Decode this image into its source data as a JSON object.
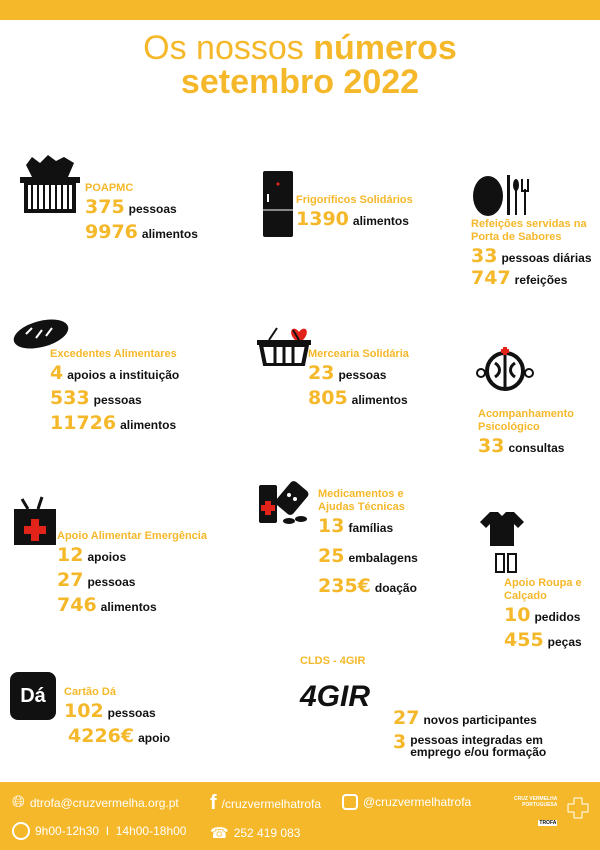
{
  "header": {
    "title_light": "Os nossos",
    "title_bold": "números",
    "subtitle": "setembro 2022"
  },
  "sections": [
    {
      "label": "POAPMC",
      "icon": "basket-icon",
      "stats": [
        {
          "value": "375",
          "unit": "pessoas"
        },
        {
          "value": "9976",
          "unit": "alimentos"
        }
      ]
    },
    {
      "label": "Frigoríficos Solidários",
      "icon": "fridge-icon",
      "stats": [
        {
          "value": "1390",
          "unit": "alimentos"
        }
      ]
    },
    {
      "label": "Refeições servidas na Porta de Sabores",
      "icon": "plate-cutlery-icon",
      "stats": [
        {
          "value": "33",
          "unit": "pessoas diárias"
        },
        {
          "value": "747",
          "unit": "refeições"
        }
      ]
    },
    {
      "label": "Excedentes Alimentares",
      "icon": "bread-icon",
      "stats": [
        {
          "value": "4",
          "unit": "apoios a instituição"
        },
        {
          "value": "533",
          "unit": "pessoas"
        },
        {
          "value": "11726",
          "unit": "alimentos"
        }
      ]
    },
    {
      "label": "Mercearia Solidária",
      "icon": "heart-basket-icon",
      "stats": [
        {
          "value": "23",
          "unit": "pessoas"
        },
        {
          "value": "805",
          "unit": "alimentos"
        }
      ]
    },
    {
      "label": "Acompanhamento Psicológico",
      "icon": "brain-icon",
      "stats": [
        {
          "value": "33",
          "unit": "consultas"
        }
      ]
    },
    {
      "label": "Apoio Alimentar Emergência",
      "icon": "grocery-bag-icon",
      "stats": [
        {
          "value": "12",
          "unit": "apoios"
        },
        {
          "value": "27",
          "unit": "pessoas"
        },
        {
          "value": "746",
          "unit": "alimentos"
        }
      ]
    },
    {
      "label": "Medicamentos e Ajudas Técnicas",
      "icon": "medicine-icon",
      "stats": [
        {
          "value": "13",
          "unit": "famílias"
        },
        {
          "value": "25",
          "unit": "embalagens"
        },
        {
          "value": "235€",
          "unit": "doação"
        }
      ]
    },
    {
      "label": "Apoio Roupa e Calçado",
      "icon": "shirt-shoes-icon",
      "stats": [
        {
          "value": "10",
          "unit": "pedidos"
        },
        {
          "value": "455",
          "unit": "peças"
        }
      ]
    },
    {
      "label": "Cartão Dá",
      "icon": "gift-card-icon",
      "logo_text": "Dá",
      "stats": [
        {
          "value": "102",
          "unit": "pessoas"
        },
        {
          "value": "4226€",
          "unit": "apoio"
        }
      ]
    },
    {
      "label": "CLDS - 4GIR",
      "icon": "4gir-logo",
      "logo_text": "4GIR",
      "stats": [
        {
          "value": "27",
          "unit": "novos participantes"
        },
        {
          "value": "3",
          "unit": "pessoas integradas em emprego e/ou formação"
        }
      ]
    }
  ],
  "footer": {
    "email": "dtrofa@cruzvermelha.org.pt",
    "facebook": "/cruzvermelhatrofa",
    "instagram": "@cruzvermelhatrofa",
    "hours": "9h00-12h30  I  14h00-18h00",
    "phone": "252 419 083",
    "logo_line1": "CRUZ VERMELHA",
    "logo_line2": "PORTUGUESA",
    "logo_tag": "TROFA"
  },
  "colors": {
    "accent": "#f5b82a",
    "text": "#111111"
  }
}
